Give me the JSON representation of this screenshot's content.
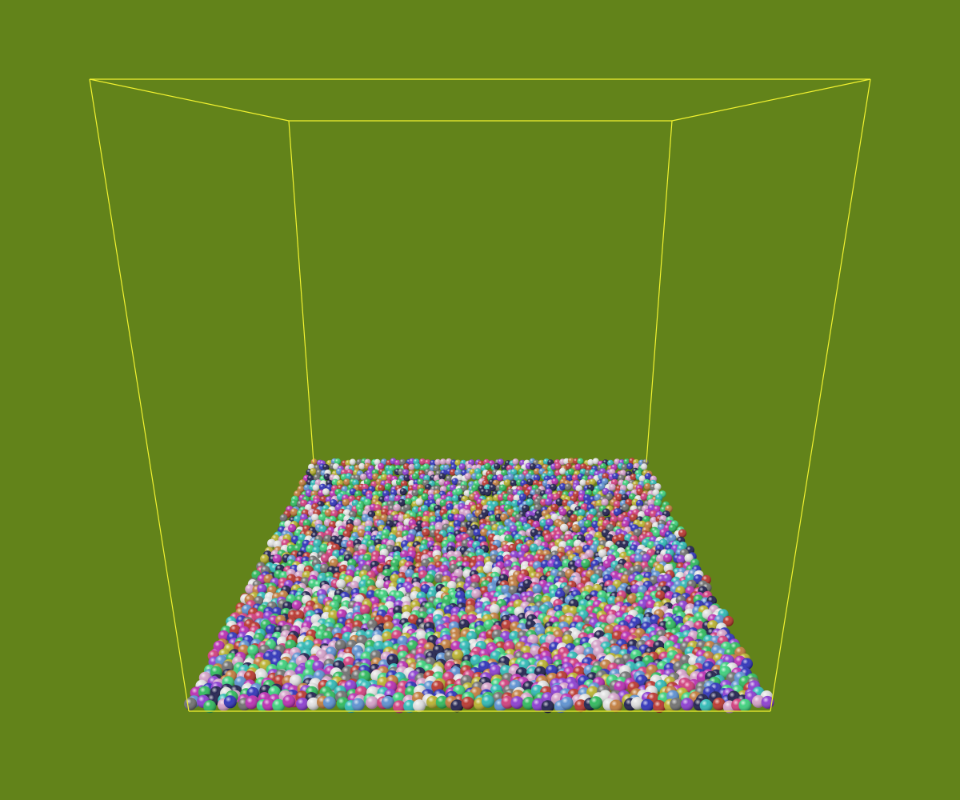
{
  "scene": {
    "background_color": "#62831a",
    "frame_color": "#f2f230",
    "particle_palette": [
      "#2b2fb8",
      "#b8332b",
      "#2bb85a",
      "#b82bb0",
      "#2bb8b4",
      "#b8b02b",
      "#6e6e6e",
      "#d4a0c8",
      "#5a8fd0",
      "#c07a3a",
      "#8a3ad0",
      "#3ad07a",
      "#d03a7a",
      "#e0e0e0",
      "#1c1c4a"
    ],
    "particle_shading": "glossy-sphere"
  }
}
